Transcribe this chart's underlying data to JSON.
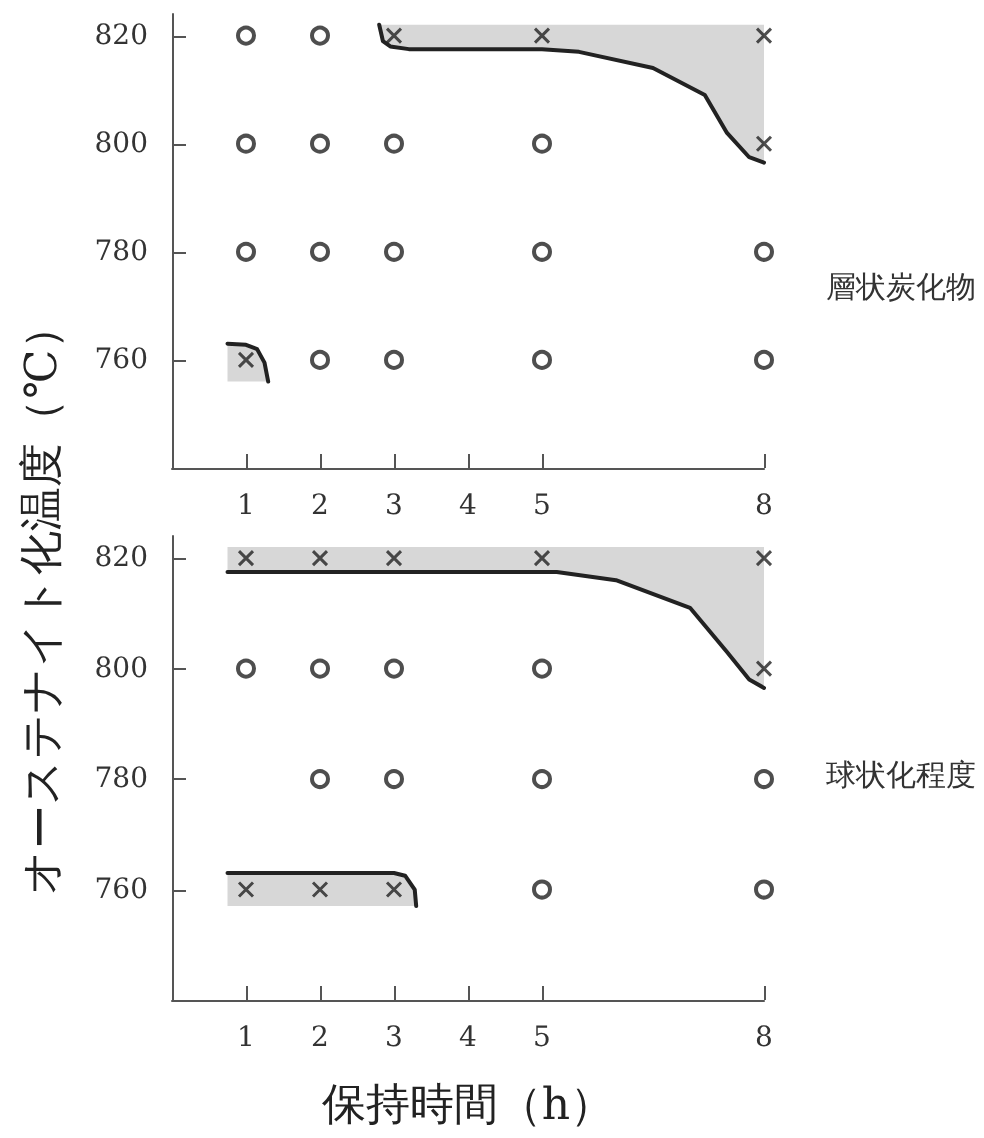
{
  "chart_data": [
    {
      "type": "scatter",
      "annotations": [
        "層状炭化物"
      ],
      "ylabel": "オーステナイト化温度（℃）",
      "xlim": [
        0,
        8
      ],
      "xticks": [
        1,
        2,
        3,
        4,
        5,
        8
      ],
      "ylim": [
        740,
        824
      ],
      "yticks": [
        760,
        780,
        800,
        820
      ],
      "grid": false,
      "series": [
        {
          "marker": "circle",
          "color": "#222222",
          "x": [
            1,
            2,
            1,
            2,
            3,
            5,
            1,
            2,
            3,
            5,
            8,
            2,
            3,
            5,
            8
          ],
          "values": [
            820,
            820,
            800,
            800,
            800,
            800,
            780,
            780,
            780,
            780,
            780,
            760,
            760,
            760,
            760
          ]
        },
        {
          "marker": "cross",
          "color": "#222222",
          "x": [
            3,
            5,
            8,
            8,
            1
          ],
          "values": [
            820,
            820,
            820,
            800,
            760
          ]
        },
        {
          "type": "line",
          "marker": "none",
          "color": "#222222",
          "x": [
            2.8,
            2.85,
            2.95,
            3.2,
            5,
            5.5,
            6.5,
            7.2,
            7.5,
            7.8,
            8
          ],
          "values": [
            822,
            819,
            818,
            817.5,
            817.5,
            817,
            814,
            809,
            802,
            797.5,
            796.5
          ],
          "lower": [
            822,
            819,
            818,
            817.5,
            817.5,
            817,
            814,
            809,
            802,
            797.5,
            796.5
          ],
          "upper": [
            822,
            822,
            822,
            822,
            822,
            822,
            822,
            822,
            822,
            822,
            822
          ]
        },
        {
          "type": "line",
          "marker": "none",
          "color": "#222222",
          "x": [
            0.75,
            1,
            1.15,
            1.25,
            1.3
          ],
          "values": [
            763,
            762.8,
            762,
            759.5,
            756
          ],
          "lower": [
            756,
            756,
            756,
            756,
            756
          ],
          "upper": [
            763,
            762.8,
            762,
            759.5,
            756
          ]
        }
      ]
    },
    {
      "type": "scatter",
      "annotations": [
        "球状化程度"
      ],
      "xlabel": "保持時間（h）",
      "xlim": [
        0,
        8
      ],
      "xticks": [
        1,
        2,
        3,
        4,
        5,
        8
      ],
      "ylim": [
        740,
        824
      ],
      "yticks": [
        760,
        780,
        800,
        820
      ],
      "grid": false,
      "series": [
        {
          "marker": "circle",
          "color": "#222222",
          "x": [
            1,
            2,
            3,
            5,
            2,
            3,
            5,
            8,
            5,
            8
          ],
          "values": [
            800,
            800,
            800,
            800,
            780,
            780,
            780,
            780,
            760,
            760
          ]
        },
        {
          "marker": "cross",
          "color": "#222222",
          "x": [
            1,
            2,
            3,
            5,
            8,
            8,
            1,
            2,
            3
          ],
          "values": [
            820,
            820,
            820,
            820,
            820,
            800,
            760,
            760,
            760
          ]
        },
        {
          "type": "line",
          "marker": "none",
          "color": "#222222",
          "x": [
            0.75,
            5.2,
            6,
            7,
            7.5,
            7.8,
            8
          ],
          "values": [
            817.5,
            817.5,
            816,
            811,
            803,
            798,
            796.5
          ],
          "lower": [
            817.5,
            817.5,
            816,
            811,
            803,
            798,
            796.5
          ],
          "upper": [
            822,
            822,
            822,
            822,
            822,
            822,
            822
          ]
        },
        {
          "type": "line",
          "marker": "none",
          "color": "#222222",
          "x": [
            0.75,
            3,
            3.15,
            3.28,
            3.3
          ],
          "values": [
            763,
            763,
            762.5,
            760,
            757
          ],
          "lower": [
            757,
            757,
            757,
            757,
            757
          ],
          "upper": [
            763,
            763,
            762.5,
            760,
            757
          ]
        }
      ]
    }
  ]
}
